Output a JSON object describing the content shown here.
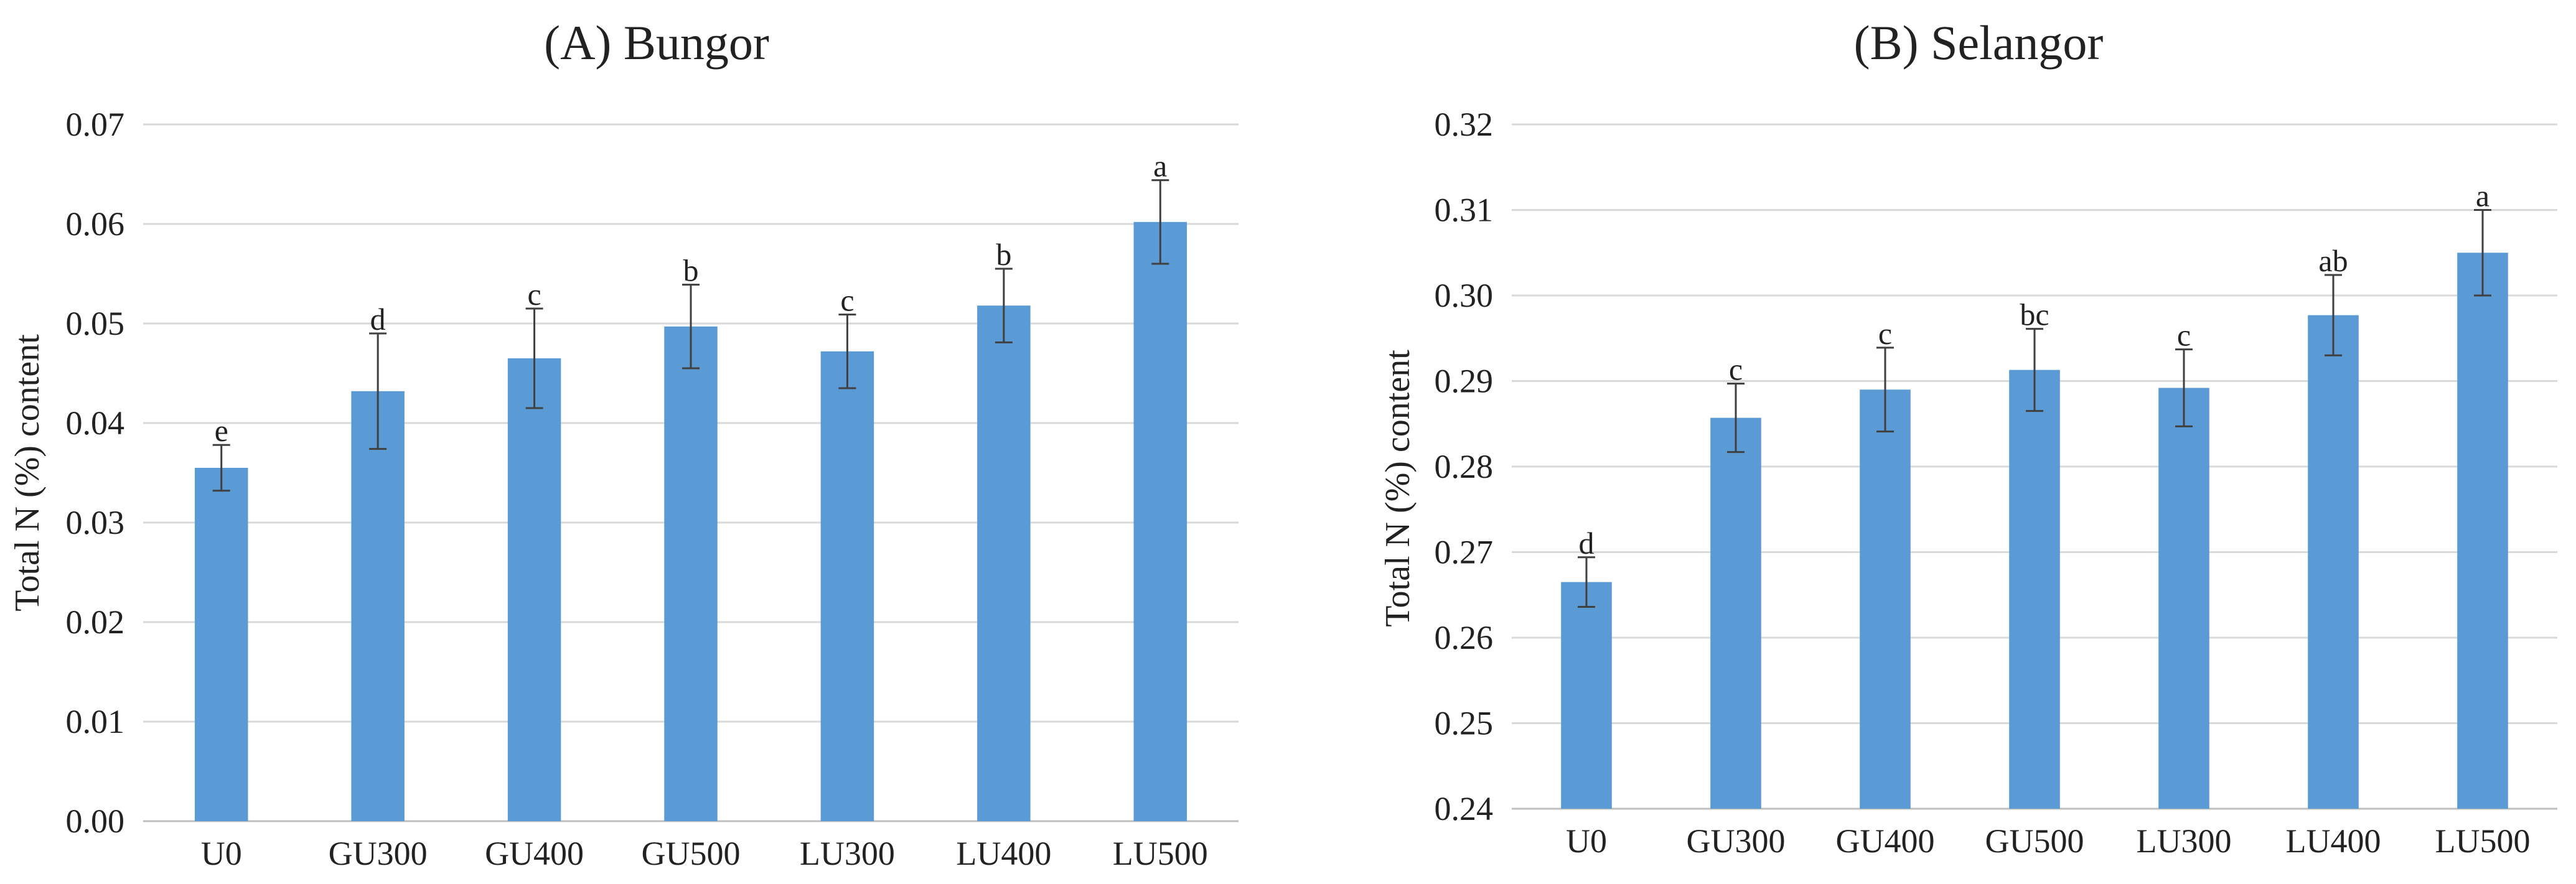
{
  "chart_data": [
    {
      "type": "bar",
      "title": "(A) Bungor",
      "ylabel": "Total N (%) content",
      "xlabel": "",
      "categories": [
        "U0",
        "GU300",
        "GU400",
        "GU500",
        "LU300",
        "LU400",
        "LU500"
      ],
      "series": [
        {
          "values": [
            0.0355,
            0.0432,
            0.0465,
            0.0497,
            0.0472,
            0.0518,
            0.0602
          ]
        }
      ],
      "error": [
        0.0023,
        0.0058,
        0.005,
        0.0042,
        0.0037,
        0.0037,
        0.0042
      ],
      "significance": [
        "e",
        "d",
        "c",
        "b",
        "c",
        "b",
        "a"
      ],
      "ylim": [
        0,
        0.07
      ],
      "yticks": [
        "0.00",
        "0.01",
        "0.02",
        "0.03",
        "0.04",
        "0.05",
        "0.06",
        "0.07"
      ],
      "grid": true,
      "bar_color": "#5b9bd5"
    },
    {
      "type": "bar",
      "title": "(B) Selangor",
      "ylabel": "Total N (%) content",
      "xlabel": "",
      "categories": [
        "U0",
        "GU300",
        "GU400",
        "GU500",
        "LU300",
        "LU400",
        "LU500"
      ],
      "series": [
        {
          "values": [
            0.2665,
            0.2857,
            0.289,
            0.2913,
            0.2892,
            0.2977,
            0.305
          ]
        }
      ],
      "error": [
        0.0029,
        0.004,
        0.0049,
        0.0048,
        0.0045,
        0.0047,
        0.005
      ],
      "significance": [
        "d",
        "c",
        "c",
        "bc",
        "c",
        "ab",
        "a"
      ],
      "ylim": [
        0.24,
        0.32
      ],
      "yticks": [
        "0.24",
        "0.25",
        "0.26",
        "0.27",
        "0.28",
        "0.29",
        "0.30",
        "0.31",
        "0.32"
      ],
      "grid": true,
      "bar_color": "#5b9bd5"
    }
  ]
}
